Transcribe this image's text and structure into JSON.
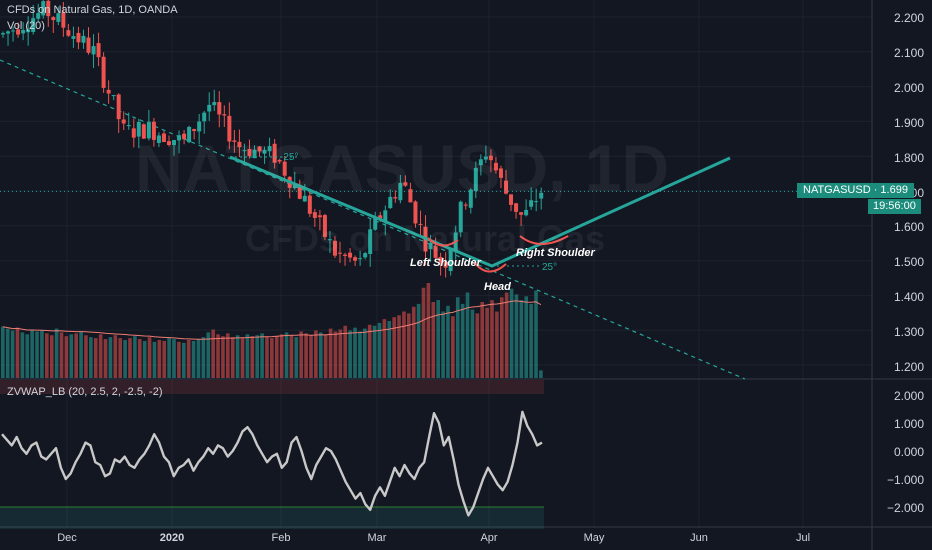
{
  "header": {
    "title": "CFDs on Natural Gas, 1D, OANDA",
    "volume_label": "Vol (20)",
    "oscillator_label": "ZVWAP_LB (20, 2.5, 2, -2.5, -2)"
  },
  "watermark": {
    "symbol": "NATGASUSD, 1D",
    "name": "CFDs on Natural Gas"
  },
  "price_axis": {
    "labels": [
      "2.200",
      "2.100",
      "2.000",
      "1.900",
      "1.800",
      "1.700",
      "1.600",
      "1.500",
      "1.400",
      "1.300",
      "1.200"
    ]
  },
  "oscillator_axis": {
    "labels": [
      "2.000",
      "1.000",
      "0.000",
      "−1.000",
      "−2.000"
    ]
  },
  "time_axis": {
    "labels": [
      "Dec",
      "2020",
      "Feb",
      "Mar",
      "Apr",
      "May",
      "Jun",
      "Jul"
    ]
  },
  "last_price": {
    "label": "NATGASUSD · 1.699",
    "countdown": "19:56:00"
  },
  "annotations": {
    "left_shoulder": "Left Shoulder",
    "head": "Head",
    "right_shoulder": "Right Shoulder",
    "angle_left": "-25°",
    "angle_right": "25°"
  },
  "colors": {
    "background": "#131722",
    "up": "#26a69a",
    "down": "#ef5350",
    "trendline": "#26a69a",
    "oscillator": "#c8c8c8"
  },
  "chart_data": {
    "type": "candlestick",
    "symbol": "NATGASUSD",
    "timeframe": "1D",
    "price_range": [
      1.16,
      2.25
    ],
    "volume": [
      0.54,
      0.52,
      0.5,
      0.53,
      0.48,
      0.46,
      0.51,
      0.49,
      0.5,
      0.47,
      0.45,
      0.52,
      0.48,
      0.44,
      0.46,
      0.47,
      0.49,
      0.45,
      0.43,
      0.42,
      0.46,
      0.41,
      0.43,
      0.45,
      0.42,
      0.4,
      0.42,
      0.44,
      0.41,
      0.39,
      0.43,
      0.38,
      0.4,
      0.39,
      0.42,
      0.41,
      0.38,
      0.37,
      0.4,
      0.39,
      0.41,
      0.43,
      0.48,
      0.51,
      0.46,
      0.44,
      0.47,
      0.43,
      0.45,
      0.42,
      0.46,
      0.44,
      0.45,
      0.47,
      0.43,
      0.42,
      0.44,
      0.46,
      0.48,
      0.45,
      0.43,
      0.49,
      0.47,
      0.45,
      0.5,
      0.48,
      0.46,
      0.52,
      0.49,
      0.51,
      0.55,
      0.5,
      0.53,
      0.49,
      0.52,
      0.56,
      0.55,
      0.58,
      0.62,
      0.6,
      0.64,
      0.66,
      0.7,
      0.68,
      0.75,
      0.78,
      0.95,
      1.0,
      0.8,
      0.82,
      0.7,
      0.76,
      0.65,
      0.85,
      0.78,
      0.9,
      0.72,
      0.68,
      0.8,
      0.74,
      0.82,
      0.7,
      0.85,
      0.9,
      0.94,
      0.88,
      0.82,
      0.86,
      0.78,
      0.92,
      0.08
    ],
    "oscillator": {
      "range": [
        -2.4,
        1.6
      ],
      "values": [
        0.6,
        0.4,
        0.2,
        0.5,
        0.1,
        -0.1,
        0.2,
        0.3,
        -0.2,
        -0.3,
        -0.1,
        0.1,
        -0.6,
        -1.0,
        -0.8,
        -0.4,
        -0.1,
        0.3,
        0.2,
        -0.4,
        -0.5,
        -0.9,
        -0.8,
        -0.3,
        -0.4,
        -0.2,
        -0.5,
        -0.6,
        -0.3,
        -0.1,
        0.2,
        0.6,
        0.3,
        -0.2,
        -0.4,
        -0.9,
        -0.6,
        -0.5,
        -0.3,
        -0.7,
        -0.4,
        -0.2,
        0.1,
        -0.1,
        0.2,
        0.1,
        -0.2,
        0.0,
        0.3,
        0.7,
        0.85,
        0.6,
        0.2,
        -0.1,
        -0.4,
        -0.2,
        -0.1,
        -0.6,
        -0.4,
        0.3,
        0.5,
        0.0,
        -0.6,
        -1.0,
        -0.5,
        -0.2,
        0.1,
        0.0,
        -0.3,
        -0.7,
        -1.1,
        -1.4,
        -1.7,
        -1.5,
        -1.9,
        -2.1,
        -1.6,
        -1.3,
        -1.6,
        -1.1,
        -0.6,
        -0.9,
        -0.5,
        -0.8,
        -1.0,
        -0.6,
        -0.4,
        0.5,
        1.35,
        1.0,
        0.2,
        0.5,
        -0.3,
        -1.2,
        -1.8,
        -2.3,
        -2.0,
        -1.5,
        -1.0,
        -0.6,
        -0.9,
        -1.2,
        -1.4,
        -1.1,
        -0.5,
        0.3,
        1.4,
        0.9,
        0.6,
        0.2,
        0.3
      ]
    }
  }
}
